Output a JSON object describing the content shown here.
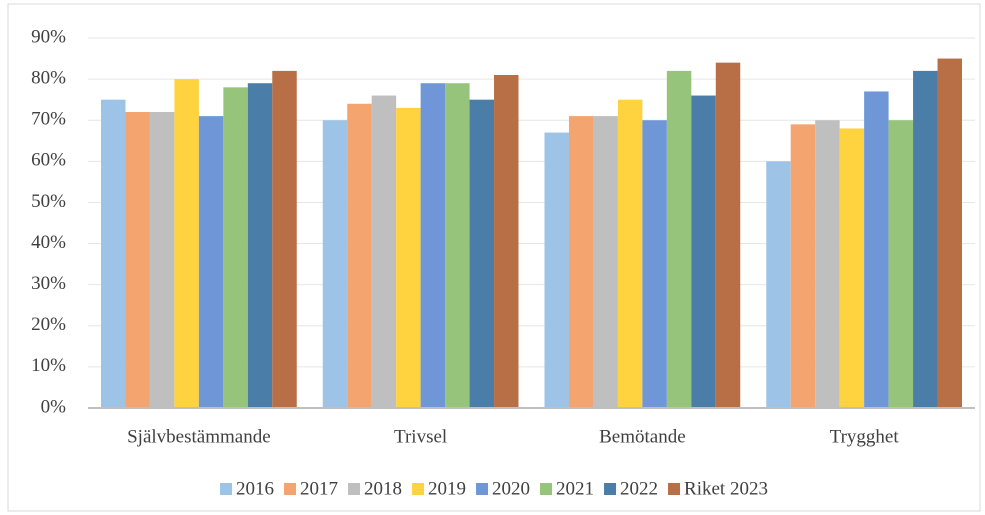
{
  "chart_data": {
    "type": "bar",
    "categories": [
      "Självbestämmande",
      "Trivsel",
      "Bemötande",
      "Trygghet"
    ],
    "series": [
      {
        "name": "2016",
        "color": "#9dc3e6",
        "values": [
          75,
          70,
          67,
          60
        ]
      },
      {
        "name": "2017",
        "color": "#f4a46e",
        "values": [
          72,
          74,
          71,
          69
        ]
      },
      {
        "name": "2018",
        "color": "#bfbfbf",
        "values": [
          72,
          76,
          71,
          70
        ]
      },
      {
        "name": "2019",
        "color": "#ffd33f",
        "values": [
          80,
          73,
          75,
          68
        ]
      },
      {
        "name": "2020",
        "color": "#6f97d8",
        "values": [
          71,
          79,
          70,
          77
        ]
      },
      {
        "name": "2021",
        "color": "#95c47a",
        "values": [
          78,
          79,
          82,
          70
        ]
      },
      {
        "name": "2022",
        "color": "#4a7ea8",
        "values": [
          79,
          75,
          76,
          82
        ]
      },
      {
        "name": "Riket 2023",
        "color": "#b86f45",
        "values": [
          82,
          81,
          84,
          85
        ]
      }
    ],
    "ylim": [
      0,
      90
    ],
    "yticks": [
      {
        "value": 0,
        "label": "0%"
      },
      {
        "value": 10,
        "label": "10%"
      },
      {
        "value": 20,
        "label": "20%"
      },
      {
        "value": 30,
        "label": "30%"
      },
      {
        "value": 40,
        "label": "40%"
      },
      {
        "value": 50,
        "label": "50%"
      },
      {
        "value": 60,
        "label": "60%"
      },
      {
        "value": 70,
        "label": "70%"
      },
      {
        "value": 80,
        "label": "80%"
      },
      {
        "value": 90,
        "label": "90%"
      }
    ],
    "grid": true,
    "legend": "bottom"
  }
}
